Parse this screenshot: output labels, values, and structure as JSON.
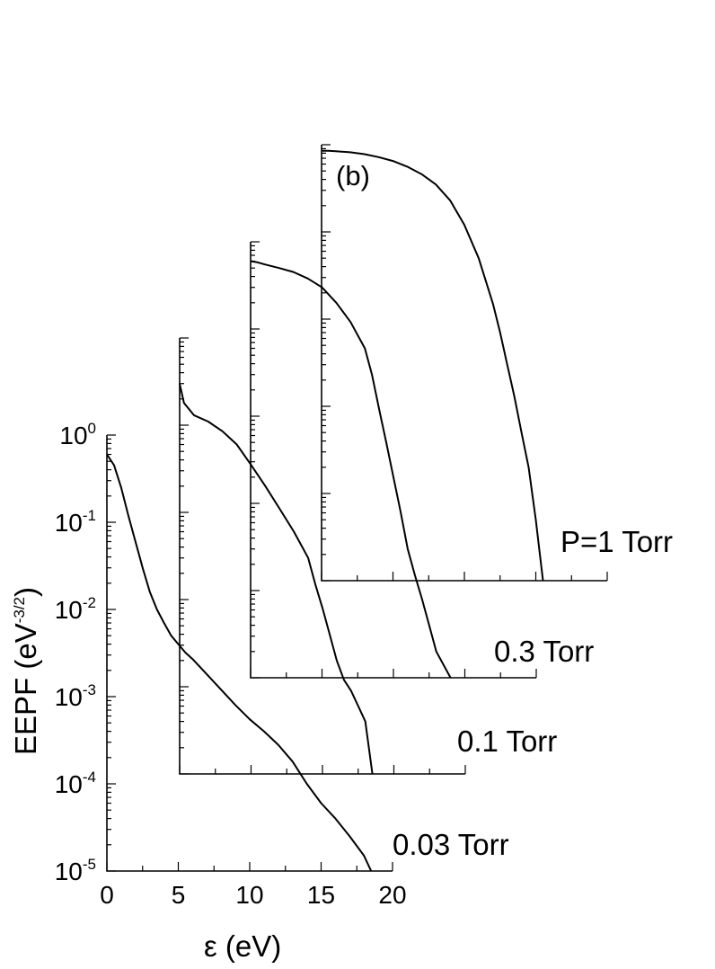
{
  "chart_data": {
    "type": "line",
    "panel_label": "(b)",
    "xlabel": "ε (eV)",
    "ylabel": "EEPF (eV",
    "ylabel_exp": "-3/2",
    "ylabel_close": ")",
    "y_scale": "log",
    "xlim": [
      0,
      20
    ],
    "ylim": [
      1e-05,
      1
    ],
    "x_tick_labels": [
      "0",
      "5",
      "10",
      "15",
      "20"
    ],
    "y_tick_labels": [
      {
        "base": "10",
        "exp": "0"
      },
      {
        "base": "10",
        "exp": "-1"
      },
      {
        "base": "10",
        "exp": "-2"
      },
      {
        "base": "10",
        "exp": "-3"
      },
      {
        "base": "10",
        "exp": "-4"
      },
      {
        "base": "10",
        "exp": "-5"
      }
    ],
    "grid": false,
    "legend": "none",
    "layout": "staggered offset panels",
    "series": [
      {
        "name": "0.03 Torr",
        "x": [
          0,
          0.5,
          1,
          1.5,
          2,
          2.5,
          3,
          3.5,
          4,
          4.5,
          5,
          5.5,
          6,
          7,
          8,
          9,
          10,
          11,
          12,
          13,
          14,
          15,
          16,
          17,
          18,
          18.5
        ],
        "y": [
          0.6,
          0.45,
          0.25,
          0.12,
          0.06,
          0.03,
          0.016,
          0.01,
          0.007,
          0.005,
          0.004,
          0.0032,
          0.0027,
          0.0018,
          0.0012,
          0.0008,
          0.00055,
          0.0004,
          0.00028,
          0.00018,
          0.0001,
          6e-05,
          4e-05,
          2.5e-05,
          1.5e-05,
          1e-05
        ]
      },
      {
        "name": "0.1 Torr",
        "x": [
          0,
          0.3,
          1,
          2,
          3,
          4,
          5,
          6,
          7,
          8,
          9,
          9.5,
          10,
          10.5,
          11,
          11.5,
          12,
          12.5,
          13,
          13.5
        ],
        "y": [
          0.3,
          0.18,
          0.13,
          0.11,
          0.085,
          0.06,
          0.035,
          0.02,
          0.011,
          0.006,
          0.003,
          0.0015,
          0.0008,
          0.0004,
          0.0002,
          0.00012,
          9e-05,
          6e-05,
          4e-05,
          1e-05
        ]
      },
      {
        "name": "0.3 Torr",
        "x": [
          0,
          0.5,
          1,
          2,
          3,
          4,
          5,
          6,
          7,
          8,
          8.5,
          9,
          9.5,
          10,
          10.5,
          11,
          11.5,
          12,
          12.5,
          13,
          14
        ],
        "y": [
          0.6,
          0.58,
          0.55,
          0.5,
          0.45,
          0.38,
          0.3,
          0.2,
          0.12,
          0.06,
          0.03,
          0.012,
          0.005,
          0.002,
          0.0008,
          0.0003,
          0.00015,
          8e-05,
          4e-05,
          2e-05,
          1e-05
        ]
      },
      {
        "name": "P=1 Torr",
        "x": [
          0,
          0.5,
          1,
          2,
          3,
          4,
          5,
          6,
          7,
          8,
          9,
          10,
          11,
          12,
          12.5,
          13,
          13.5,
          14,
          14.5,
          15,
          15.5
        ],
        "y": [
          0.85,
          0.85,
          0.84,
          0.82,
          0.78,
          0.72,
          0.65,
          0.56,
          0.46,
          0.35,
          0.23,
          0.12,
          0.05,
          0.015,
          0.007,
          0.003,
          0.0013,
          0.0005,
          0.0002,
          5e-05,
          1e-05
        ]
      }
    ]
  }
}
